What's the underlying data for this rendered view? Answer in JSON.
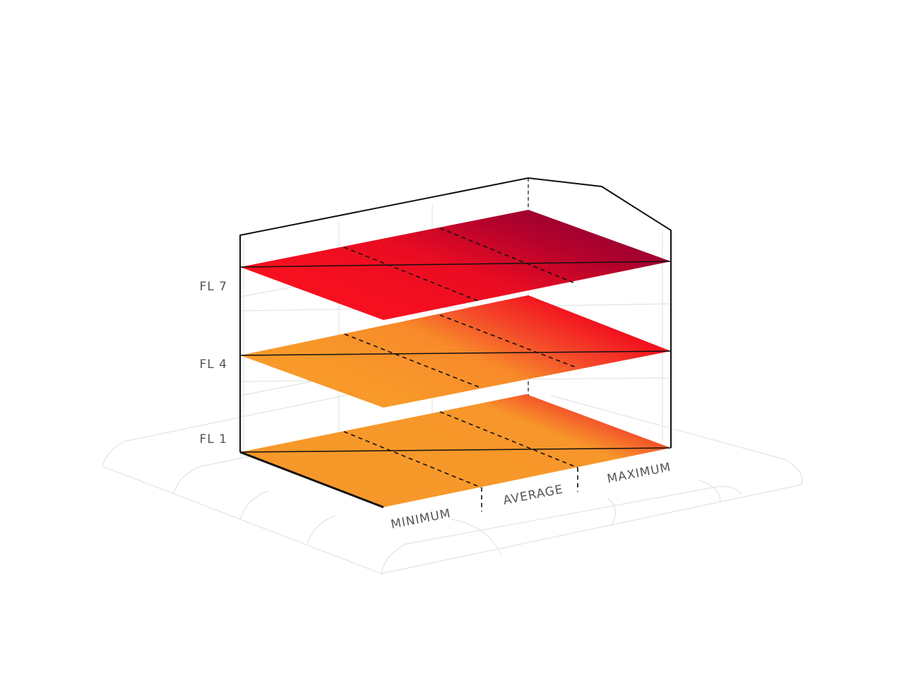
{
  "floors": [
    {
      "label": "FL 7"
    },
    {
      "label": "FL 4"
    },
    {
      "label": "FL 1"
    }
  ],
  "legend": {
    "labels": [
      "MINIMUM",
      "AVERAGE",
      "MAXIMUM"
    ]
  }
}
